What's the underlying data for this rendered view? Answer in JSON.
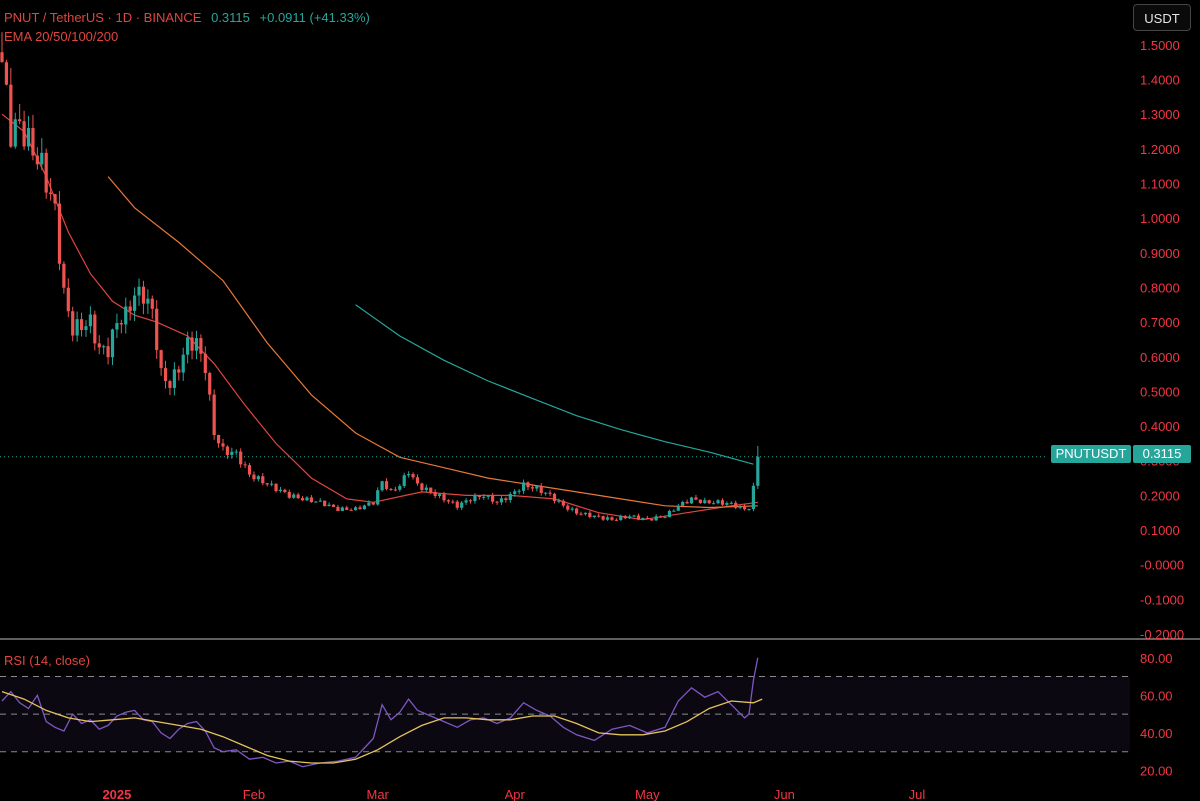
{
  "header": {
    "symbol": "PNUT / TetherUS · 1D · BINANCE",
    "last_price": "0.3115",
    "change": "+0.0911 (+41.33%)",
    "indicator_label": "EMA 20/50/100/200",
    "currency_button": "USDT"
  },
  "price_tag": {
    "symbol": "PNUTUSDT",
    "value": "0.3115"
  },
  "rsi": {
    "label": "RSI (14, close)"
  },
  "colors": {
    "up": "#26a69a",
    "down": "#ef5350",
    "ema20": "#e0453f",
    "ema50": "#e8773a",
    "ema200": "#26a69a",
    "rsi": "#7e57c2",
    "rsi_ma": "#e6c35c",
    "axis_text": "#f23645"
  },
  "chart_data": [
    {
      "type": "candlestick",
      "title": "PNUT / TetherUS · 1D · BINANCE",
      "x_axis_labels": [
        "2025",
        "Feb",
        "Mar",
        "Apr",
        "May",
        "Jun",
        "Jul"
      ],
      "y_ticks": [
        "1.5000",
        "1.4000",
        "1.3000",
        "1.2000",
        "1.1000",
        "1.0000",
        "0.9000",
        "0.8000",
        "0.7000",
        "0.6000",
        "0.5000",
        "0.4000",
        "0.3000",
        "0.2000",
        "0.1000",
        "-0.0000",
        "-0.1000",
        "-0.2000"
      ],
      "ylim": [
        -0.2,
        1.52
      ],
      "last_close": 0.3115,
      "anchors": [
        [
          0,
          1.45
        ],
        [
          2,
          1.25
        ],
        [
          4,
          1.27
        ],
        [
          6,
          1.22
        ],
        [
          9,
          1.15
        ],
        [
          12,
          1.02
        ],
        [
          14,
          0.78
        ],
        [
          16,
          0.68
        ],
        [
          18,
          0.69
        ],
        [
          20,
          0.7
        ],
        [
          22,
          0.62
        ],
        [
          24,
          0.62
        ],
        [
          26,
          0.7
        ],
        [
          28,
          0.72
        ],
        [
          30,
          0.78
        ],
        [
          32,
          0.78
        ],
        [
          34,
          0.73
        ],
        [
          36,
          0.55
        ],
        [
          38,
          0.52
        ],
        [
          40,
          0.57
        ],
        [
          42,
          0.64
        ],
        [
          44,
          0.64
        ],
        [
          46,
          0.57
        ],
        [
          48,
          0.38
        ],
        [
          50,
          0.33
        ],
        [
          53,
          0.32
        ],
        [
          56,
          0.26
        ],
        [
          59,
          0.24
        ],
        [
          62,
          0.22
        ],
        [
          65,
          0.2
        ],
        [
          68,
          0.19
        ],
        [
          72,
          0.18
        ],
        [
          76,
          0.16
        ],
        [
          80,
          0.16
        ],
        [
          84,
          0.18
        ],
        [
          86,
          0.24
        ],
        [
          88,
          0.21
        ],
        [
          90,
          0.23
        ],
        [
          92,
          0.27
        ],
        [
          94,
          0.23
        ],
        [
          97,
          0.21
        ],
        [
          100,
          0.19
        ],
        [
          103,
          0.17
        ],
        [
          106,
          0.19
        ],
        [
          109,
          0.2
        ],
        [
          112,
          0.18
        ],
        [
          115,
          0.2
        ],
        [
          118,
          0.23
        ],
        [
          121,
          0.22
        ],
        [
          124,
          0.2
        ],
        [
          127,
          0.17
        ],
        [
          130,
          0.15
        ],
        [
          134,
          0.14
        ],
        [
          138,
          0.13
        ],
        [
          142,
          0.14
        ],
        [
          146,
          0.13
        ],
        [
          150,
          0.14
        ],
        [
          153,
          0.17
        ],
        [
          156,
          0.19
        ],
        [
          159,
          0.18
        ],
        [
          162,
          0.18
        ],
        [
          165,
          0.175
        ],
        [
          168,
          0.16
        ],
        [
          169,
          0.165
        ],
        [
          170,
          0.22
        ],
        [
          171,
          0.3115
        ]
      ],
      "ema20": [
        [
          0,
          1.3
        ],
        [
          5,
          1.25
        ],
        [
          10,
          1.12
        ],
        [
          15,
          0.96
        ],
        [
          20,
          0.84
        ],
        [
          25,
          0.76
        ],
        [
          30,
          0.72
        ],
        [
          35,
          0.7
        ],
        [
          42,
          0.66
        ],
        [
          48,
          0.58
        ],
        [
          55,
          0.46
        ],
        [
          62,
          0.35
        ],
        [
          70,
          0.25
        ],
        [
          78,
          0.19
        ],
        [
          84,
          0.18
        ],
        [
          95,
          0.21
        ],
        [
          105,
          0.2
        ],
        [
          115,
          0.2
        ],
        [
          125,
          0.19
        ],
        [
          135,
          0.15
        ],
        [
          145,
          0.13
        ],
        [
          155,
          0.15
        ],
        [
          165,
          0.17
        ],
        [
          171,
          0.18
        ]
      ],
      "ema50": [
        [
          24,
          1.12
        ],
        [
          30,
          1.03
        ],
        [
          40,
          0.93
        ],
        [
          50,
          0.82
        ],
        [
          60,
          0.64
        ],
        [
          70,
          0.49
        ],
        [
          80,
          0.38
        ],
        [
          90,
          0.31
        ],
        [
          100,
          0.28
        ],
        [
          110,
          0.25
        ],
        [
          120,
          0.23
        ],
        [
          130,
          0.21
        ],
        [
          140,
          0.19
        ],
        [
          150,
          0.17
        ],
        [
          160,
          0.165
        ],
        [
          171,
          0.17
        ]
      ],
      "ema200": [
        [
          80,
          0.75
        ],
        [
          90,
          0.66
        ],
        [
          100,
          0.59
        ],
        [
          110,
          0.53
        ],
        [
          120,
          0.48
        ],
        [
          130,
          0.43
        ],
        [
          140,
          0.39
        ],
        [
          150,
          0.355
        ],
        [
          160,
          0.325
        ],
        [
          170,
          0.29
        ]
      ]
    },
    {
      "type": "line",
      "title": "RSI (14, close)",
      "y_ticks": [
        "80.00",
        "60.00",
        "40.00",
        "20.00"
      ],
      "ylim": [
        16,
        82
      ],
      "bands": [
        70,
        50,
        30
      ],
      "series": [
        {
          "values": [
            [
              0,
              57
            ],
            [
              2,
              62
            ],
            [
              4,
              56
            ],
            [
              6,
              53
            ],
            [
              8,
              60
            ],
            [
              10,
              46
            ],
            [
              12,
              43
            ],
            [
              14,
              41
            ],
            [
              16,
              50
            ],
            [
              18,
              45
            ],
            [
              20,
              47
            ],
            [
              22,
              42
            ],
            [
              24,
              44
            ],
            [
              26,
              49
            ],
            [
              28,
              51
            ],
            [
              30,
              52
            ],
            [
              32,
              47
            ],
            [
              34,
              46
            ],
            [
              36,
              40
            ],
            [
              38,
              37
            ],
            [
              40,
              42
            ],
            [
              42,
              45
            ],
            [
              44,
              46
            ],
            [
              46,
              41
            ],
            [
              48,
              32
            ],
            [
              50,
              30
            ],
            [
              53,
              31
            ],
            [
              56,
              26
            ],
            [
              59,
              27
            ],
            [
              62,
              24
            ],
            [
              65,
              25
            ],
            [
              68,
              22
            ],
            [
              72,
              24
            ],
            [
              76,
              25
            ],
            [
              80,
              27
            ],
            [
              84,
              37
            ],
            [
              86,
              55
            ],
            [
              88,
              47
            ],
            [
              90,
              51
            ],
            [
              92,
              58
            ],
            [
              94,
              52
            ],
            [
              97,
              49
            ],
            [
              100,
              46
            ],
            [
              103,
              43
            ],
            [
              106,
              47
            ],
            [
              109,
              48
            ],
            [
              112,
              45
            ],
            [
              115,
              48
            ],
            [
              118,
              56
            ],
            [
              121,
              52
            ],
            [
              124,
              49
            ],
            [
              127,
              43
            ],
            [
              130,
              39
            ],
            [
              134,
              36
            ],
            [
              138,
              42
            ],
            [
              142,
              44
            ],
            [
              146,
              40
            ],
            [
              150,
              43
            ],
            [
              153,
              57
            ],
            [
              156,
              64
            ],
            [
              159,
              59
            ],
            [
              162,
              62
            ],
            [
              165,
              55
            ],
            [
              168,
              48
            ],
            [
              169,
              50
            ],
            [
              170,
              68
            ],
            [
              171,
              80
            ]
          ]
        },
        {
          "values": [
            [
              0,
              62
            ],
            [
              5,
              58
            ],
            [
              10,
              52
            ],
            [
              15,
              48
            ],
            [
              20,
              46
            ],
            [
              25,
              47
            ],
            [
              30,
              48
            ],
            [
              35,
              46
            ],
            [
              40,
              44
            ],
            [
              45,
              42
            ],
            [
              50,
              38
            ],
            [
              55,
              33
            ],
            [
              60,
              28
            ],
            [
              65,
              25
            ],
            [
              70,
              24
            ],
            [
              75,
              24
            ],
            [
              80,
              26
            ],
            [
              85,
              31
            ],
            [
              90,
              38
            ],
            [
              95,
              44
            ],
            [
              100,
              48
            ],
            [
              105,
              48
            ],
            [
              110,
              47
            ],
            [
              115,
              47
            ],
            [
              120,
              49
            ],
            [
              125,
              49
            ],
            [
              130,
              45
            ],
            [
              135,
              40
            ],
            [
              140,
              39
            ],
            [
              145,
              39
            ],
            [
              150,
              41
            ],
            [
              155,
              46
            ],
            [
              160,
              53
            ],
            [
              165,
              57
            ],
            [
              170,
              56
            ],
            [
              172,
              58
            ]
          ]
        }
      ]
    }
  ]
}
